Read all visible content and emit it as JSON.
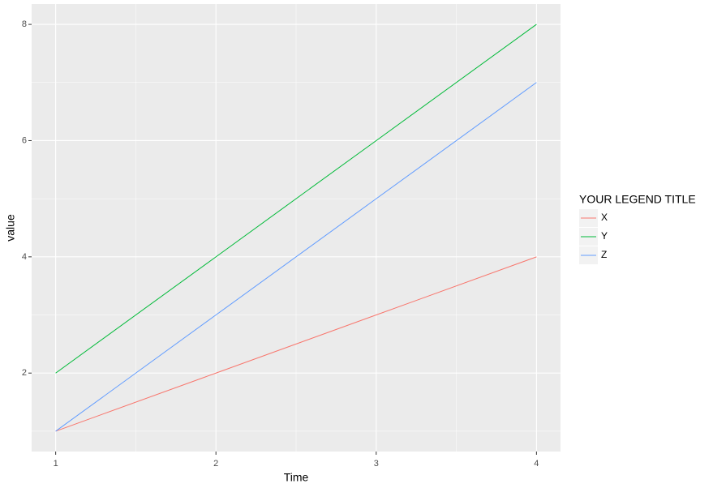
{
  "chart_data": {
    "type": "line",
    "x": [
      1,
      2,
      3,
      4
    ],
    "series": [
      {
        "name": "X",
        "color": "#F8766D",
        "values": [
          1,
          2,
          3,
          4
        ]
      },
      {
        "name": "Y",
        "color": "#00BA38",
        "values": [
          2,
          4,
          6,
          8
        ]
      },
      {
        "name": "Z",
        "color": "#619CFF",
        "values": [
          1,
          3,
          5,
          7
        ]
      }
    ],
    "xlabel": "Time",
    "ylabel": "value",
    "legend_title": "YOUR LEGEND TITLE",
    "xlim": [
      0.85,
      4.15
    ],
    "ylim": [
      0.65,
      8.35
    ],
    "xticks": [
      1,
      2,
      3,
      4
    ],
    "yticks": [
      2,
      4,
      6,
      8
    ],
    "x_minor_grid": [
      1.5,
      2.5,
      3.5
    ],
    "y_minor_grid": [
      1,
      3,
      5,
      7
    ],
    "grid": true,
    "legend": "right"
  }
}
